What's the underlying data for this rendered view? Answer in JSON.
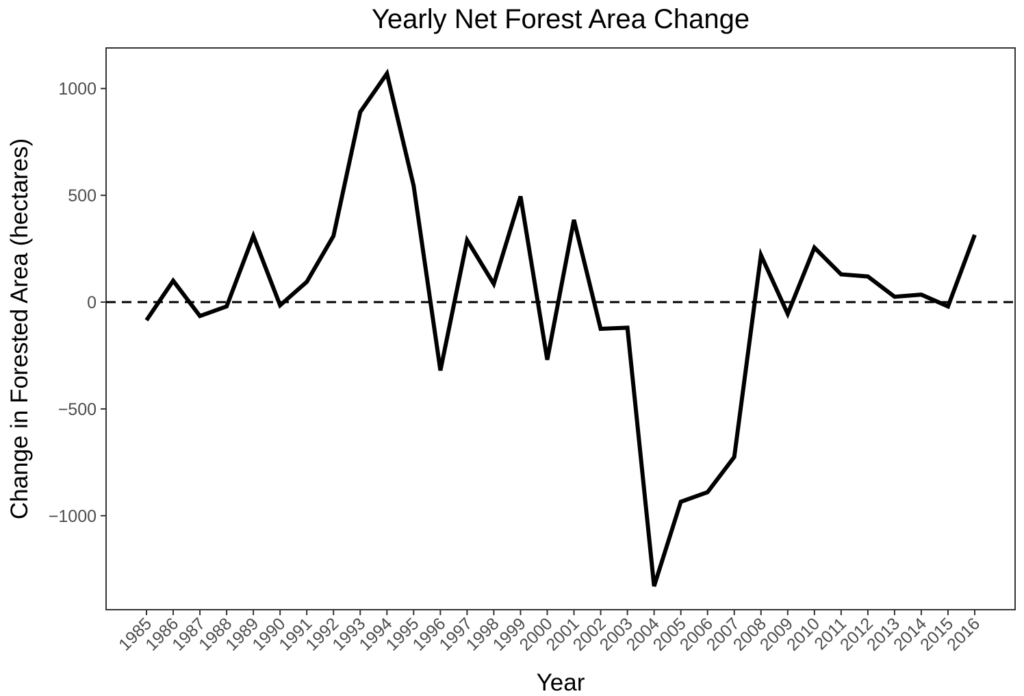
{
  "chart_data": {
    "type": "line",
    "title": "Yearly Net Forest Area Change",
    "xlabel": "Year",
    "ylabel": "Change in Forested Area (hectares)",
    "categories": [
      "1985",
      "1986",
      "1987",
      "1988",
      "1989",
      "1990",
      "1991",
      "1992",
      "1993",
      "1994",
      "1995",
      "1996",
      "1997",
      "1998",
      "1999",
      "2000",
      "2001",
      "2002",
      "2003",
      "2004",
      "2005",
      "2006",
      "2007",
      "2008",
      "2009",
      "2010",
      "2011",
      "2012",
      "2013",
      "2014",
      "2015",
      "2016"
    ],
    "series": [
      {
        "values": [
          -85,
          100,
          -65,
          -20,
          310,
          -15,
          95,
          310,
          890,
          1070,
          545,
          -320,
          290,
          85,
          495,
          -270,
          385,
          -125,
          -120,
          -1330,
          -935,
          -890,
          -725,
          220,
          -55,
          255,
          130,
          120,
          25,
          35,
          -20,
          315
        ],
        "color": "#000000"
      }
    ],
    "reference_line": {
      "y": 0,
      "style": "dashed",
      "color": "#000000"
    },
    "yticks": [
      -1000,
      -500,
      0,
      500,
      1000
    ],
    "ylim": [
      -1440,
      1190
    ],
    "grid": false,
    "legend": "none",
    "x_tick_rotation": "45"
  }
}
